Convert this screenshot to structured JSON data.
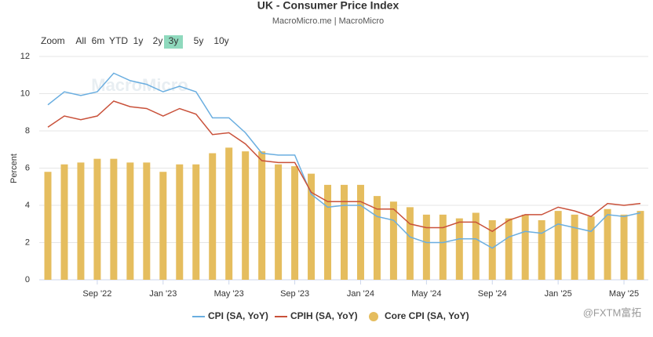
{
  "chart_data": {
    "type": "bar-line",
    "title": "UK - Consumer Price Index",
    "subtitle": "MacroMicro.me | MacroMicro",
    "y_label": "Percent",
    "watermark": "MacroMicro",
    "corner_watermark": "@FXTM富拓",
    "range_selector": {
      "label": "Zoom",
      "buttons": [
        "All",
        "6m",
        "YTD",
        "1y",
        "2y",
        "3y",
        "5y",
        "10y"
      ],
      "selected": "3y"
    },
    "categories": [
      null,
      null,
      null,
      "Sep '22",
      null,
      null,
      null,
      "Jan '23",
      null,
      null,
      null,
      "May '23",
      null,
      null,
      null,
      "Sep '23",
      null,
      null,
      null,
      "Jan '24",
      null,
      null,
      null,
      "May '24",
      null,
      null,
      null,
      "Sep '24",
      null,
      null,
      null,
      "Jan '25",
      null,
      null,
      null,
      "May '25",
      null
    ],
    "ylim": [
      0,
      12
    ],
    "yticks": [
      0,
      2,
      4,
      6,
      8,
      10,
      12
    ],
    "grid": true,
    "series": [
      {
        "name": "CPI (SA, YoY)",
        "kind": "line",
        "color": "#6aaee0",
        "values": [
          9.4,
          10.1,
          9.9,
          10.1,
          11.1,
          10.7,
          10.5,
          10.1,
          10.4,
          10.1,
          8.7,
          8.7,
          7.9,
          6.8,
          6.7,
          6.7,
          4.6,
          3.9,
          4.0,
          4.0,
          3.4,
          3.2,
          2.3,
          2.0,
          2.0,
          2.2,
          2.2,
          1.7,
          2.3,
          2.6,
          2.5,
          3.0,
          2.8,
          2.6,
          3.5,
          3.4,
          3.6
        ]
      },
      {
        "name": "CPIH (SA, YoY)",
        "kind": "line",
        "color": "#c9513a",
        "values": [
          8.2,
          8.8,
          8.6,
          8.8,
          9.6,
          9.3,
          9.2,
          8.8,
          9.2,
          8.9,
          7.8,
          7.9,
          7.3,
          6.4,
          6.3,
          6.3,
          4.7,
          4.2,
          4.2,
          4.2,
          3.8,
          3.8,
          3.0,
          2.8,
          2.8,
          3.1,
          3.1,
          2.6,
          3.2,
          3.5,
          3.5,
          3.9,
          3.7,
          3.4,
          4.1,
          4.0,
          4.1
        ]
      },
      {
        "name": "Core CPI (SA, YoY)",
        "kind": "bar",
        "color": "#e5bd5e",
        "values": [
          5.8,
          6.2,
          6.3,
          6.5,
          6.5,
          6.3,
          6.3,
          5.8,
          6.2,
          6.2,
          6.8,
          7.1,
          6.9,
          6.9,
          6.2,
          6.1,
          5.7,
          5.1,
          5.1,
          5.1,
          4.5,
          4.2,
          3.9,
          3.5,
          3.5,
          3.3,
          3.6,
          3.2,
          3.3,
          3.5,
          3.2,
          3.7,
          3.5,
          3.4,
          3.8,
          3.5,
          3.7
        ]
      }
    ]
  }
}
